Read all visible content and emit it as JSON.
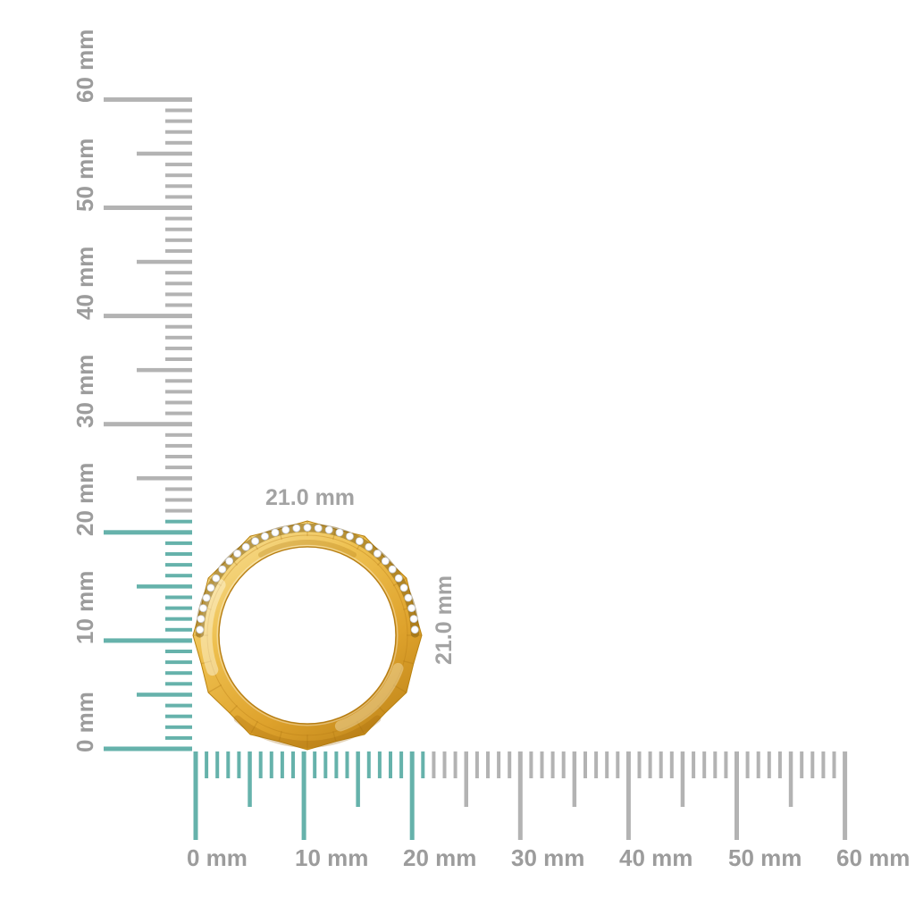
{
  "page": {
    "background": "#ffffff",
    "subject": "gold-diamond-ring-size-diagram"
  },
  "rulers": {
    "unit": "mm",
    "colors": {
      "highlight": "#66b2ab",
      "normal": "#b3b3b3",
      "label": "#9c9c9c"
    },
    "horizontal": {
      "range_mm": [
        0,
        60
      ],
      "major_step_mm": 10,
      "medium_step_mm": 5,
      "minor_step_mm": 1,
      "highlight_until_mm": 21,
      "labels": [
        "0 mm",
        "10 mm",
        "20 mm",
        "30 mm",
        "40 mm",
        "50 mm",
        "60 mm"
      ]
    },
    "vertical": {
      "range_mm": [
        0,
        60
      ],
      "major_step_mm": 10,
      "medium_step_mm": 5,
      "minor_step_mm": 1,
      "highlight_until_mm": 21,
      "labels": [
        "0 mm",
        "10 mm",
        "20 mm",
        "30 mm",
        "40 mm",
        "50 mm",
        "60 mm"
      ]
    }
  },
  "measurement": {
    "width_label": "21.0 mm",
    "height_label": "21.0 mm",
    "value_mm": 21.0,
    "color": "#a3a3a3"
  },
  "ring": {
    "name": "gold-ring-with-diamond-accents",
    "stones_visible": 31,
    "colors": {
      "band_light": "#f8e19a",
      "band_mid": "#eec04f",
      "band_deep": "#dea22c",
      "band_shadow": "#c0861a",
      "edge": "#b9820f",
      "facet_line": "rgba(170,115,15,0.30)",
      "pave_backing": "rgba(125,92,16,0.50)",
      "stone": "#ffffff",
      "stone_edge": "#c9cfdb"
    }
  }
}
